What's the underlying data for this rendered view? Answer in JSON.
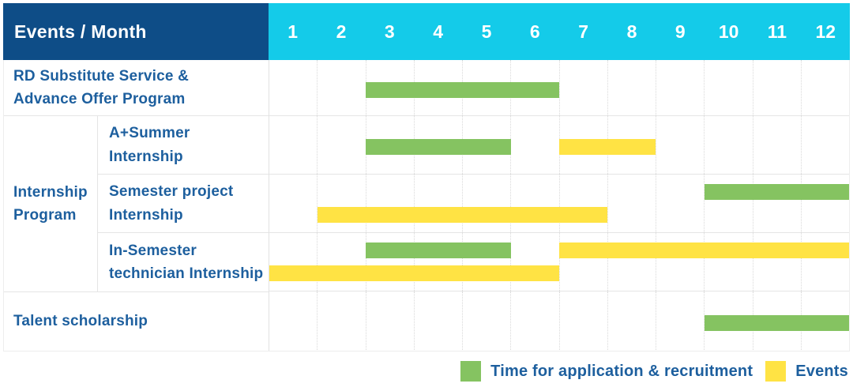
{
  "colors": {
    "header_bg": "#0e4d87",
    "months_bg": "#14cbe9",
    "label_text": "#1d5f9e",
    "grid_line": "#e5e5e5",
    "month_divider": "#d9d9d9",
    "recruitment": "#85c361",
    "event": "#ffe344"
  },
  "chart_data": {
    "type": "gantt",
    "title": "Events / Month",
    "months": [
      "1",
      "2",
      "3",
      "4",
      "5",
      "6",
      "7",
      "8",
      "9",
      "10",
      "11",
      "12"
    ],
    "group_label": "Internship Program",
    "group_label_lines": [
      "Internship",
      "Program"
    ],
    "legend": [
      {
        "key": "recruitment",
        "label": "Time for application & recruitment",
        "color": "#85c361"
      },
      {
        "key": "event",
        "label": "Events",
        "color": "#ffe344"
      }
    ],
    "rows": [
      {
        "label": "RD Substitute Service & Advance Offer Program",
        "label_lines": [
          "RD Substitute Service &",
          "Advance Offer Program"
        ],
        "group": "",
        "bars": [
          {
            "start": 3,
            "end": 6,
            "type": "recruitment",
            "line": 0
          }
        ]
      },
      {
        "label": "A+Summer Internship",
        "label_lines": [
          "A+Summer",
          "Internship"
        ],
        "group": "Internship Program",
        "bars": [
          {
            "start": 3,
            "end": 5,
            "type": "recruitment",
            "line": 0
          },
          {
            "start": 7,
            "end": 8,
            "type": "event",
            "line": 0
          }
        ]
      },
      {
        "label": "Semester project Internship",
        "label_lines": [
          "Semester project",
          "Internship"
        ],
        "group": "Internship Program",
        "bars": [
          {
            "start": 10,
            "end": 12,
            "type": "recruitment",
            "line": 0
          },
          {
            "start": 2,
            "end": 7,
            "type": "event",
            "line": 1
          }
        ]
      },
      {
        "label": "In-Semester technician Internship",
        "label_lines": [
          "In-Semester",
          "technician Internship"
        ],
        "group": "Internship Program",
        "bars": [
          {
            "start": 3,
            "end": 5,
            "type": "recruitment",
            "line": 0
          },
          {
            "start": 7,
            "end": 12,
            "type": "event",
            "line": 0
          },
          {
            "start": 1,
            "end": 6,
            "type": "event",
            "line": 1
          }
        ]
      },
      {
        "label": "Talent scholarship",
        "label_lines": [
          "Talent scholarship"
        ],
        "group": "",
        "bars": [
          {
            "start": 10,
            "end": 12,
            "type": "recruitment",
            "line": 0
          }
        ]
      }
    ]
  }
}
